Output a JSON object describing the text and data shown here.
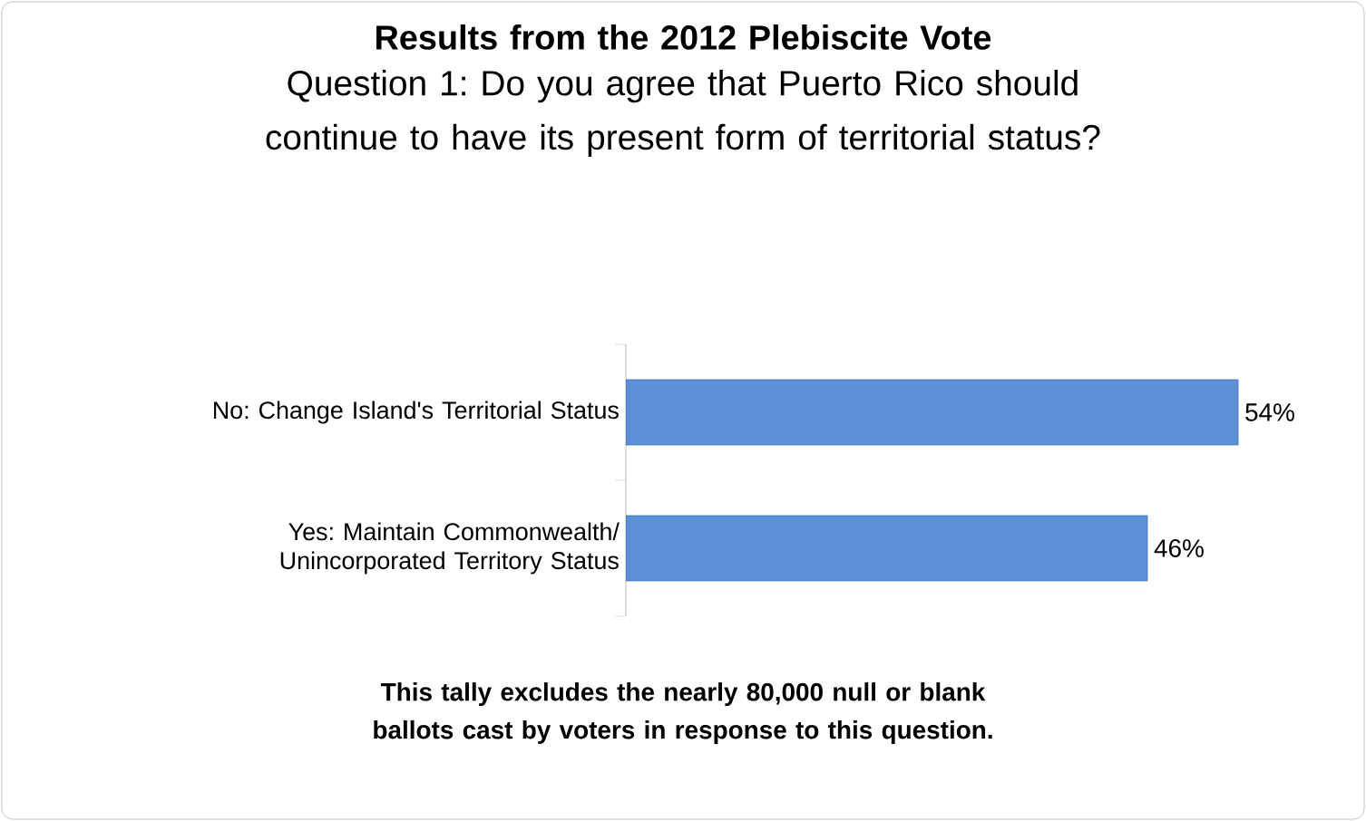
{
  "chart_data": {
    "type": "bar",
    "orientation": "horizontal",
    "title": "Results from the 2012 Plebiscite Vote",
    "subtitle": "Question 1: Do you agree that Puerto Rico should continue to have its present form of territorial status?",
    "categories": [
      "No: Change Island's Territorial Status",
      "Yes: Maintain Commonwealth/ Unincorporated Territory Status"
    ],
    "values": [
      54,
      46
    ],
    "value_labels": [
      "54%",
      "46%"
    ],
    "color": "#5b8fd8",
    "tick_labels": "y",
    "annotations": [
      "This tally excludes the nearly 80,000 null or blank ballots cast by voters in response to this question."
    ]
  }
}
